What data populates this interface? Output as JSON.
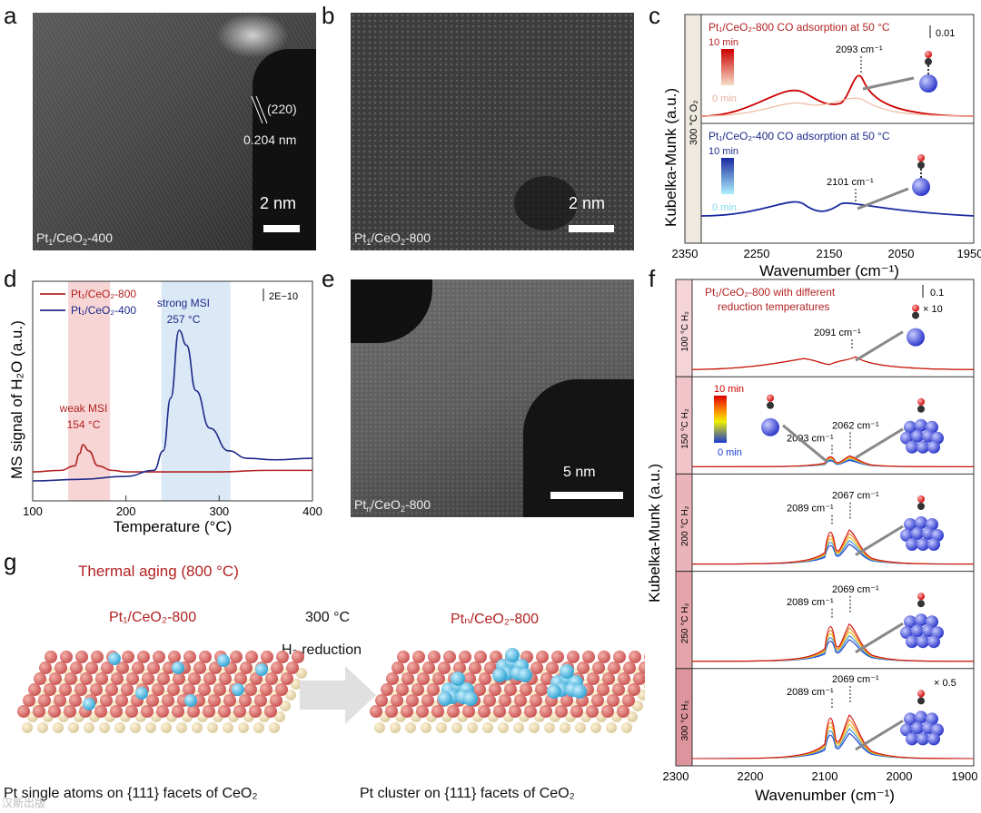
{
  "panel_labels": {
    "a": "a",
    "b": "b",
    "c": "c",
    "d": "d",
    "e": "e",
    "f": "f",
    "g": "g"
  },
  "panel_a": {
    "sample_main": "Pt",
    "sample_sub1": "1",
    "sample_rest": "/CeO",
    "sample_sub2": "2",
    "sample_tail": "-400",
    "lattice_plane": "(220)",
    "d_spacing": "0.204 nm",
    "scale": "2 nm"
  },
  "panel_b": {
    "sample_main": "Pt",
    "sample_sub1": "1",
    "sample_rest": "/CeO",
    "sample_sub2": "2",
    "sample_tail": "-800",
    "scale": "2 nm"
  },
  "panel_e": {
    "sample_main": "Pt",
    "sample_sub1": "n",
    "sample_rest": "/CeO",
    "sample_sub2": "2",
    "sample_tail": "-800",
    "scale": "5 nm"
  },
  "panel_c": {
    "side_label": "300 °C O₂",
    "top_title": "Pt₁/CeO₂-800 CO adsorption at 50 °C",
    "bottom_title": "Pt₁/CeO₂-400 CO adsorption at 50 °C",
    "scale_bar": "0.01",
    "legend_max": "10 min",
    "legend_min": "0 min",
    "peak_top": "2093 cm⁻¹",
    "peak_bottom": "2101 cm⁻¹",
    "ylabel": "Kubelka-Munk (a.u.)",
    "xlabel": "Wavenumber (cm⁻¹)",
    "x_ticks": [
      "2350",
      "2250",
      "2150",
      "2050",
      "1950"
    ]
  },
  "panel_f": {
    "title_line1": "Pt₁/CeO₂-800 with different",
    "title_line2": "reduction temperatures",
    "scale_bar": "0.1",
    "scale_mult": "× 10",
    "scale_mult2": "× 0.5",
    "legend_max": "10 min",
    "legend_min": "0 min",
    "rows": [
      {
        "side": "100 °C H₂",
        "peak1": "2091 cm⁻¹",
        "peak2": ""
      },
      {
        "side": "150 °C H₂",
        "peak1": "2093 cm⁻¹",
        "peak2": "2062 cm⁻¹"
      },
      {
        "side": "200 °C H₂",
        "peak1": "2089 cm⁻¹",
        "peak2": "2067 cm⁻¹"
      },
      {
        "side": "250 °C H₂",
        "peak1": "2089 cm⁻¹",
        "peak2": "2069 cm⁻¹"
      },
      {
        "side": "300 °C H₂",
        "peak1": "2089 cm⁻¹",
        "peak2": "2069 cm⁻¹"
      }
    ],
    "ylabel": "Kubelka-Munk (a.u.)",
    "xlabel": "Wavenumber (cm⁻¹)",
    "x_ticks": [
      "2300",
      "2200",
      "2100",
      "2000",
      "1900"
    ]
  },
  "chart_data": {
    "type": "line",
    "title": "",
    "xlabel": "Temperature (°C)",
    "ylabel": "MS signal of H₂O (a.u.)",
    "xlim": [
      100,
      400
    ],
    "x_ticks": [
      "100",
      "200",
      "300",
      "400"
    ],
    "scale_bar": "2E−10",
    "series": [
      {
        "name": "Pt₁/CeO₂-800",
        "color": "#b22222",
        "x": [
          100,
          130,
          145,
          150,
          154,
          160,
          170,
          185,
          200,
          250,
          300,
          350,
          400
        ],
        "y": [
          0.06,
          0.07,
          0.1,
          0.18,
          0.24,
          0.2,
          0.1,
          0.07,
          0.06,
          0.06,
          0.06,
          0.07,
          0.07
        ]
      },
      {
        "name": "Pt₁/CeO₂-400",
        "color": "#1f2b8a",
        "x": [
          100,
          150,
          200,
          230,
          240,
          248,
          257,
          265,
          275,
          290,
          310,
          330,
          360,
          400
        ],
        "y": [
          0.0,
          0.01,
          0.03,
          0.07,
          0.2,
          0.55,
          1.0,
          0.9,
          0.6,
          0.35,
          0.2,
          0.15,
          0.14,
          0.15
        ]
      }
    ],
    "annotations": [
      {
        "text": "weak MSI",
        "sub": "154 °C",
        "x": 154
      },
      {
        "text": "strong MSI",
        "sub": "257 °C",
        "x": 257
      }
    ],
    "shaded": [
      {
        "from": 138,
        "to": 183,
        "color": "#f7d5d5"
      },
      {
        "from": 238,
        "to": 312,
        "color": "#dbe8f5"
      }
    ]
  },
  "panel_g": {
    "title": "Thermal aging (800 °C)",
    "left_label": "Pt₁/CeO₂-800",
    "right_label": "Ptₙ/CeO₂-800",
    "arrow_top": "300 °C",
    "arrow_bottom": "H₂ reduction",
    "left_caption": "Pt single atoms on {111} facets of CeO₂",
    "right_caption": "Pt cluster on {111} facets of CeO₂"
  },
  "watermark": "汉斯出版"
}
